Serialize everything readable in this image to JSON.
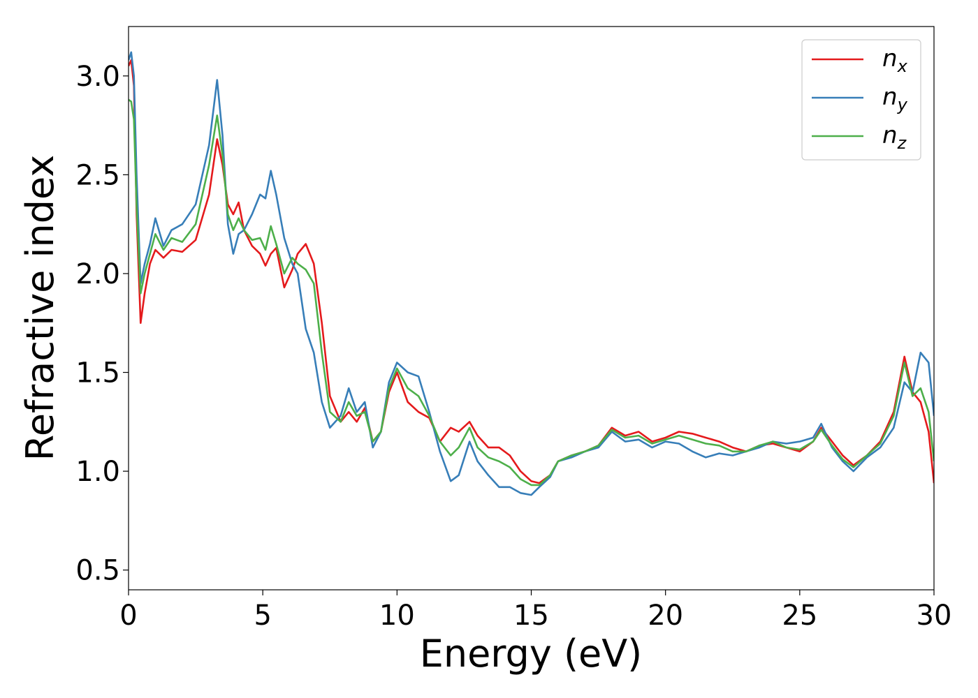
{
  "chart_data": {
    "type": "line",
    "xlabel": "Energy (eV)",
    "ylabel": "Refractive index",
    "xlim": [
      0,
      30
    ],
    "ylim": [
      0.4,
      3.25
    ],
    "xticks": [
      0,
      5,
      10,
      15,
      20,
      25,
      30
    ],
    "xtick_labels": [
      "0",
      "5",
      "10",
      "15",
      "20",
      "25",
      "30"
    ],
    "yticks": [
      0.5,
      1.0,
      1.5,
      2.0,
      2.5,
      3.0
    ],
    "ytick_labels": [
      "0.5",
      "1.0",
      "1.5",
      "2.0",
      "2.5",
      "3.0"
    ],
    "grid": false,
    "legend_position": "top-right",
    "series": [
      {
        "name": "n_x",
        "legend_main": "n",
        "legend_sub": "x",
        "color": "#e41a1c",
        "points": [
          [
            0,
            3.05
          ],
          [
            0.1,
            3.08
          ],
          [
            0.2,
            2.95
          ],
          [
            0.3,
            2.3
          ],
          [
            0.45,
            1.75
          ],
          [
            0.6,
            1.9
          ],
          [
            0.8,
            2.05
          ],
          [
            1.0,
            2.12
          ],
          [
            1.3,
            2.08
          ],
          [
            1.6,
            2.12
          ],
          [
            2.0,
            2.11
          ],
          [
            2.5,
            2.17
          ],
          [
            3.0,
            2.4
          ],
          [
            3.3,
            2.68
          ],
          [
            3.5,
            2.55
          ],
          [
            3.7,
            2.35
          ],
          [
            3.9,
            2.3
          ],
          [
            4.1,
            2.36
          ],
          [
            4.3,
            2.22
          ],
          [
            4.6,
            2.14
          ],
          [
            4.9,
            2.1
          ],
          [
            5.1,
            2.04
          ],
          [
            5.3,
            2.1
          ],
          [
            5.5,
            2.13
          ],
          [
            5.8,
            1.93
          ],
          [
            6.1,
            2.02
          ],
          [
            6.3,
            2.1
          ],
          [
            6.6,
            2.15
          ],
          [
            6.9,
            2.05
          ],
          [
            7.2,
            1.75
          ],
          [
            7.5,
            1.38
          ],
          [
            7.9,
            1.25
          ],
          [
            8.2,
            1.3
          ],
          [
            8.5,
            1.25
          ],
          [
            8.8,
            1.32
          ],
          [
            9.1,
            1.15
          ],
          [
            9.4,
            1.2
          ],
          [
            9.7,
            1.4
          ],
          [
            10.0,
            1.5
          ],
          [
            10.4,
            1.35
          ],
          [
            10.8,
            1.3
          ],
          [
            11.2,
            1.27
          ],
          [
            11.6,
            1.15
          ],
          [
            12.0,
            1.22
          ],
          [
            12.3,
            1.2
          ],
          [
            12.7,
            1.25
          ],
          [
            13.0,
            1.18
          ],
          [
            13.4,
            1.12
          ],
          [
            13.8,
            1.12
          ],
          [
            14.2,
            1.08
          ],
          [
            14.6,
            1.0
          ],
          [
            15.0,
            0.95
          ],
          [
            15.3,
            0.94
          ],
          [
            15.7,
            0.98
          ],
          [
            16.0,
            1.05
          ],
          [
            16.5,
            1.08
          ],
          [
            17.0,
            1.1
          ],
          [
            17.5,
            1.13
          ],
          [
            18.0,
            1.22
          ],
          [
            18.5,
            1.18
          ],
          [
            19.0,
            1.2
          ],
          [
            19.5,
            1.15
          ],
          [
            20.0,
            1.17
          ],
          [
            20.5,
            1.2
          ],
          [
            21.0,
            1.19
          ],
          [
            21.5,
            1.17
          ],
          [
            22.0,
            1.15
          ],
          [
            22.5,
            1.12
          ],
          [
            23.0,
            1.1
          ],
          [
            23.5,
            1.13
          ],
          [
            24.0,
            1.14
          ],
          [
            24.5,
            1.12
          ],
          [
            25.0,
            1.1
          ],
          [
            25.5,
            1.15
          ],
          [
            25.8,
            1.22
          ],
          [
            26.2,
            1.15
          ],
          [
            26.6,
            1.08
          ],
          [
            27.0,
            1.03
          ],
          [
            27.5,
            1.08
          ],
          [
            28.0,
            1.15
          ],
          [
            28.5,
            1.3
          ],
          [
            28.9,
            1.58
          ],
          [
            29.2,
            1.4
          ],
          [
            29.5,
            1.35
          ],
          [
            29.8,
            1.2
          ],
          [
            30.0,
            0.94
          ]
        ]
      },
      {
        "name": "n_y",
        "legend_main": "n",
        "legend_sub": "y",
        "color": "#377eb8",
        "points": [
          [
            0,
            3.08
          ],
          [
            0.1,
            3.12
          ],
          [
            0.2,
            3.0
          ],
          [
            0.3,
            2.5
          ],
          [
            0.45,
            1.95
          ],
          [
            0.6,
            2.05
          ],
          [
            0.8,
            2.15
          ],
          [
            1.0,
            2.28
          ],
          [
            1.3,
            2.14
          ],
          [
            1.6,
            2.22
          ],
          [
            2.0,
            2.25
          ],
          [
            2.5,
            2.35
          ],
          [
            3.0,
            2.65
          ],
          [
            3.3,
            2.98
          ],
          [
            3.5,
            2.7
          ],
          [
            3.7,
            2.25
          ],
          [
            3.9,
            2.1
          ],
          [
            4.1,
            2.2
          ],
          [
            4.3,
            2.22
          ],
          [
            4.6,
            2.3
          ],
          [
            4.9,
            2.4
          ],
          [
            5.1,
            2.38
          ],
          [
            5.3,
            2.52
          ],
          [
            5.5,
            2.4
          ],
          [
            5.8,
            2.18
          ],
          [
            6.1,
            2.05
          ],
          [
            6.3,
            2.0
          ],
          [
            6.6,
            1.72
          ],
          [
            6.9,
            1.6
          ],
          [
            7.2,
            1.35
          ],
          [
            7.5,
            1.22
          ],
          [
            7.9,
            1.28
          ],
          [
            8.2,
            1.42
          ],
          [
            8.5,
            1.3
          ],
          [
            8.8,
            1.35
          ],
          [
            9.1,
            1.12
          ],
          [
            9.4,
            1.2
          ],
          [
            9.7,
            1.45
          ],
          [
            10.0,
            1.55
          ],
          [
            10.4,
            1.5
          ],
          [
            10.8,
            1.48
          ],
          [
            11.2,
            1.3
          ],
          [
            11.6,
            1.1
          ],
          [
            12.0,
            0.95
          ],
          [
            12.3,
            0.98
          ],
          [
            12.7,
            1.15
          ],
          [
            13.0,
            1.05
          ],
          [
            13.4,
            0.98
          ],
          [
            13.8,
            0.92
          ],
          [
            14.2,
            0.92
          ],
          [
            14.6,
            0.89
          ],
          [
            15.0,
            0.88
          ],
          [
            15.3,
            0.92
          ],
          [
            15.7,
            0.97
          ],
          [
            16.0,
            1.05
          ],
          [
            16.5,
            1.07
          ],
          [
            17.0,
            1.1
          ],
          [
            17.5,
            1.12
          ],
          [
            18.0,
            1.2
          ],
          [
            18.5,
            1.15
          ],
          [
            19.0,
            1.16
          ],
          [
            19.5,
            1.12
          ],
          [
            20.0,
            1.15
          ],
          [
            20.5,
            1.14
          ],
          [
            21.0,
            1.1
          ],
          [
            21.5,
            1.07
          ],
          [
            22.0,
            1.09
          ],
          [
            22.5,
            1.08
          ],
          [
            23.0,
            1.1
          ],
          [
            23.5,
            1.12
          ],
          [
            24.0,
            1.15
          ],
          [
            24.5,
            1.14
          ],
          [
            25.0,
            1.15
          ],
          [
            25.5,
            1.17
          ],
          [
            25.8,
            1.24
          ],
          [
            26.2,
            1.12
          ],
          [
            26.6,
            1.05
          ],
          [
            27.0,
            1.0
          ],
          [
            27.5,
            1.07
          ],
          [
            28.0,
            1.12
          ],
          [
            28.5,
            1.22
          ],
          [
            28.9,
            1.45
          ],
          [
            29.2,
            1.4
          ],
          [
            29.5,
            1.6
          ],
          [
            29.8,
            1.55
          ],
          [
            30.0,
            1.28
          ]
        ]
      },
      {
        "name": "n_z",
        "legend_main": "n",
        "legend_sub": "z",
        "color": "#4daf4a",
        "points": [
          [
            0,
            2.88
          ],
          [
            0.1,
            2.87
          ],
          [
            0.2,
            2.78
          ],
          [
            0.3,
            2.35
          ],
          [
            0.45,
            1.9
          ],
          [
            0.6,
            2.0
          ],
          [
            0.8,
            2.1
          ],
          [
            1.0,
            2.2
          ],
          [
            1.3,
            2.12
          ],
          [
            1.6,
            2.18
          ],
          [
            2.0,
            2.16
          ],
          [
            2.5,
            2.25
          ],
          [
            3.0,
            2.55
          ],
          [
            3.3,
            2.8
          ],
          [
            3.5,
            2.6
          ],
          [
            3.7,
            2.3
          ],
          [
            3.9,
            2.22
          ],
          [
            4.1,
            2.28
          ],
          [
            4.3,
            2.22
          ],
          [
            4.6,
            2.17
          ],
          [
            4.9,
            2.18
          ],
          [
            5.1,
            2.12
          ],
          [
            5.3,
            2.24
          ],
          [
            5.5,
            2.15
          ],
          [
            5.8,
            2.0
          ],
          [
            6.1,
            2.08
          ],
          [
            6.3,
            2.05
          ],
          [
            6.6,
            2.02
          ],
          [
            6.9,
            1.95
          ],
          [
            7.2,
            1.6
          ],
          [
            7.5,
            1.3
          ],
          [
            7.9,
            1.25
          ],
          [
            8.2,
            1.35
          ],
          [
            8.5,
            1.28
          ],
          [
            8.8,
            1.3
          ],
          [
            9.1,
            1.15
          ],
          [
            9.4,
            1.2
          ],
          [
            9.7,
            1.42
          ],
          [
            10.0,
            1.52
          ],
          [
            10.4,
            1.42
          ],
          [
            10.8,
            1.38
          ],
          [
            11.2,
            1.28
          ],
          [
            11.6,
            1.15
          ],
          [
            12.0,
            1.08
          ],
          [
            12.3,
            1.12
          ],
          [
            12.7,
            1.22
          ],
          [
            13.0,
            1.12
          ],
          [
            13.4,
            1.07
          ],
          [
            13.8,
            1.05
          ],
          [
            14.2,
            1.02
          ],
          [
            14.6,
            0.96
          ],
          [
            15.0,
            0.93
          ],
          [
            15.3,
            0.93
          ],
          [
            15.7,
            0.98
          ],
          [
            16.0,
            1.05
          ],
          [
            16.5,
            1.08
          ],
          [
            17.0,
            1.1
          ],
          [
            17.5,
            1.13
          ],
          [
            18.0,
            1.21
          ],
          [
            18.5,
            1.17
          ],
          [
            19.0,
            1.18
          ],
          [
            19.5,
            1.14
          ],
          [
            20.0,
            1.16
          ],
          [
            20.5,
            1.18
          ],
          [
            21.0,
            1.16
          ],
          [
            21.5,
            1.14
          ],
          [
            22.0,
            1.13
          ],
          [
            22.5,
            1.1
          ],
          [
            23.0,
            1.1
          ],
          [
            23.5,
            1.13
          ],
          [
            24.0,
            1.15
          ],
          [
            24.5,
            1.12
          ],
          [
            25.0,
            1.11
          ],
          [
            25.5,
            1.15
          ],
          [
            25.8,
            1.21
          ],
          [
            26.2,
            1.13
          ],
          [
            26.6,
            1.06
          ],
          [
            27.0,
            1.02
          ],
          [
            27.5,
            1.08
          ],
          [
            28.0,
            1.14
          ],
          [
            28.5,
            1.28
          ],
          [
            28.9,
            1.55
          ],
          [
            29.2,
            1.38
          ],
          [
            29.5,
            1.42
          ],
          [
            29.8,
            1.3
          ],
          [
            30.0,
            1.05
          ]
        ]
      }
    ]
  }
}
